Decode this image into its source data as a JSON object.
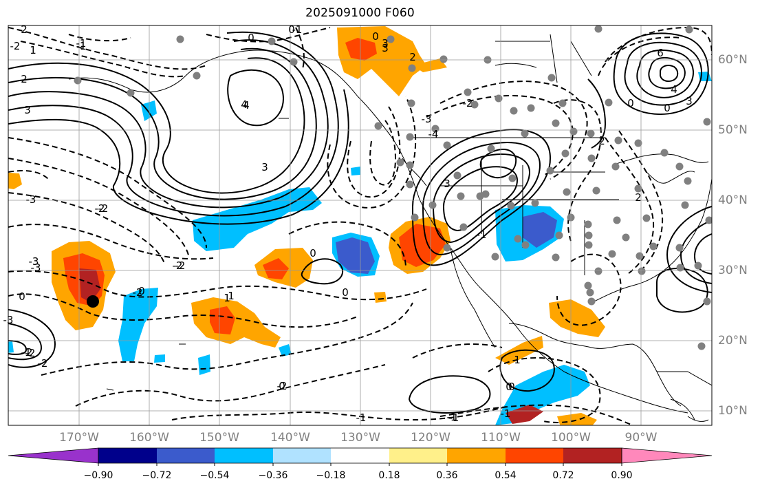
{
  "title": "2025091000 F060",
  "lon_labels": [
    "170°W",
    "160°W",
    "150°W",
    "140°W",
    "130°W",
    "120°W",
    "110°W",
    "100°W",
    "90°W"
  ],
  "lat_labels": [
    "60°N",
    "50°N",
    "40°N",
    "30°N",
    "20°N",
    "10°N"
  ],
  "colorbar": {
    "colors": [
      "#9932cc",
      "#00008b",
      "#3b5bcc",
      "#00bfff",
      "#b0e2ff",
      "#ffffff",
      "#fff08a",
      "#ffa500",
      "#ff4500",
      "#b22222",
      "#ff88bb"
    ],
    "tick_labels": [
      "−0.90",
      "−0.72",
      "−0.54",
      "−0.36",
      "−0.18",
      "0.18",
      "0.36",
      "0.54",
      "0.72",
      "0.90"
    ]
  },
  "contour_labels": [
    "2",
    "1",
    "2",
    "3",
    "-1",
    "-2",
    "-3",
    "-2",
    "-2",
    "-3",
    "0",
    "-2",
    "-1",
    "-2",
    "-2",
    "0",
    "1",
    "-2",
    "0",
    "-1",
    "3",
    "-1",
    "4",
    "3",
    "2",
    "0",
    "0",
    "-3",
    "-1",
    "0",
    "-1",
    "-2",
    "-2",
    "-3",
    "-2",
    "0",
    "4",
    "3",
    "-1",
    "-2",
    "-3",
    "-4",
    "2",
    "3",
    "6",
    "4",
    "3",
    "2",
    "0",
    "0",
    "1",
    "0",
    "0",
    "-1",
    "0",
    "-1",
    "1"
  ],
  "station_marker": "storm-center"
}
